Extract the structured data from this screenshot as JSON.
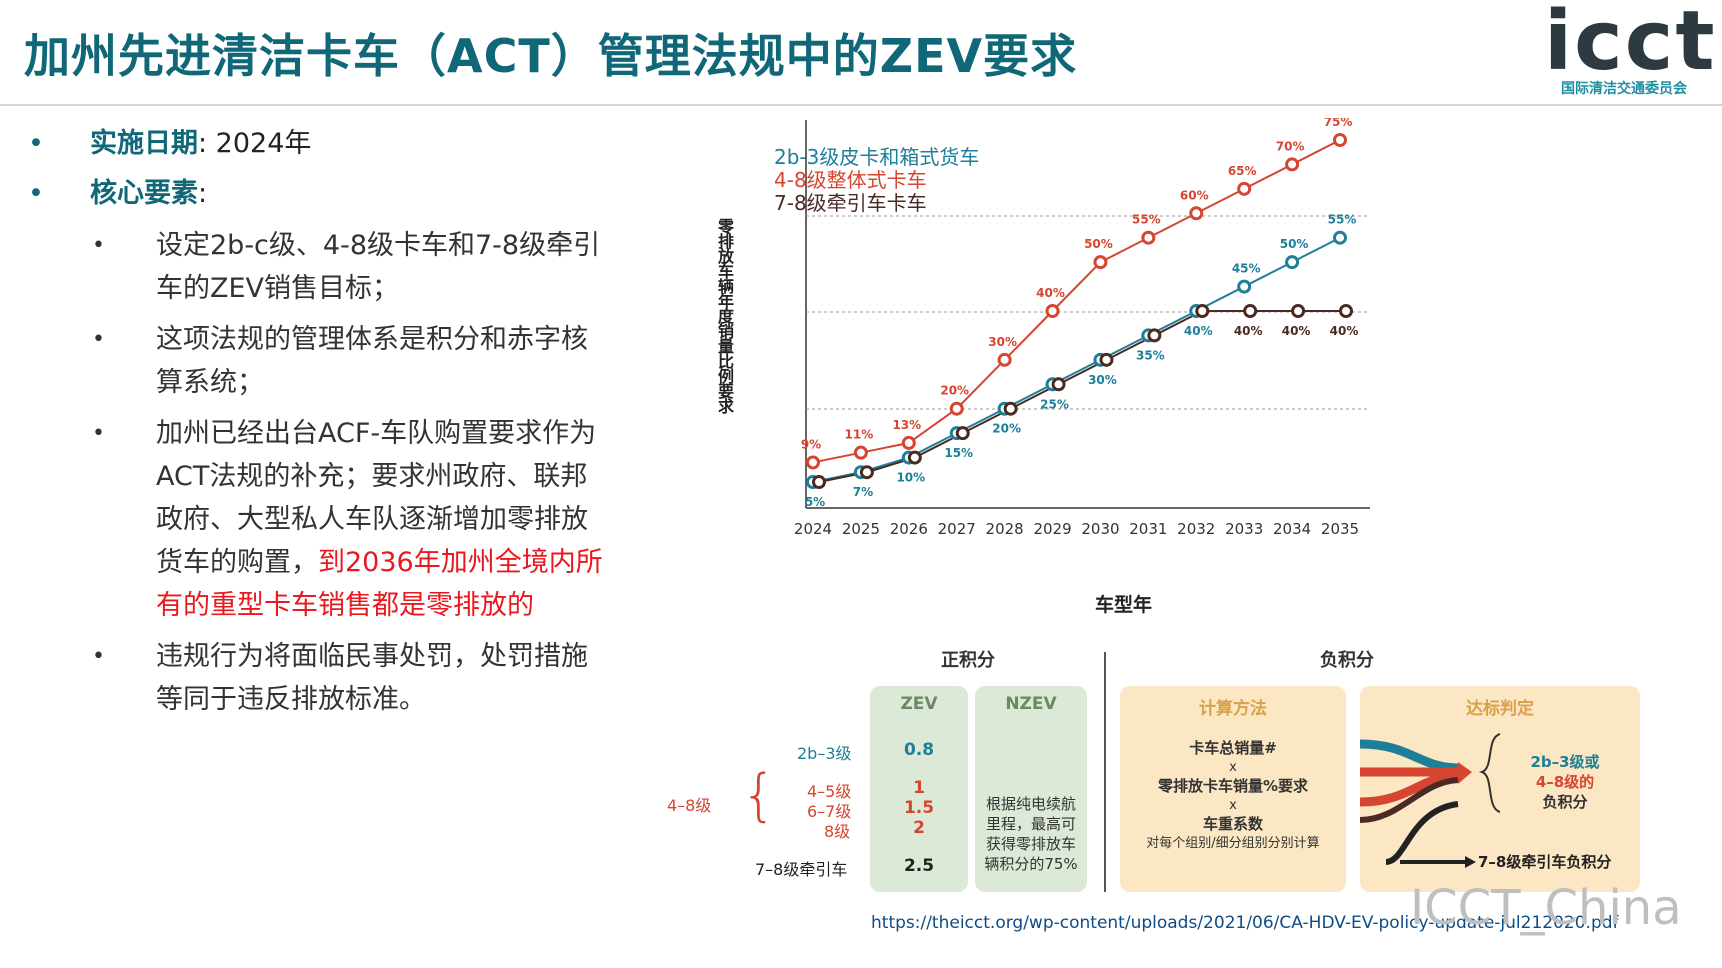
{
  "title": "加州先进清洁卡车（ACT）管理法规中的ZEV要求",
  "logo": {
    "word": "icct",
    "subtitle": "国际清洁交通委员会"
  },
  "bullets": {
    "b1_key": "实施日期",
    "b1_rest": ": 2024年",
    "b2_key": "核心要素",
    "b2_rest": ":",
    "sub1": "设定2b-c级、4-8级卡车和7-8级牵引车的ZEV销售目标；",
    "sub2": "这项法规的管理体系是积分和赤字核算系统；",
    "sub3_normal": "加州已经出台ACF-车队购置要求作为ACT法规的补充；要求州政府、联邦政府、大型私人车队逐渐增加零排放货车的购置，",
    "sub3_red": "到2036年加州全境内所有的重型卡车销售都是零排放的",
    "sub4": "违规行为将面临民事处罚，处罚措施等同于违反排放标准。",
    "dot": "•"
  },
  "chart_data": {
    "type": "line",
    "x": [
      2024,
      2025,
      2026,
      2027,
      2028,
      2029,
      2030,
      2031,
      2032,
      2033,
      2034,
      2035
    ],
    "xlabel": "车型年",
    "ylabel": "零排放车辆年度销量比例要求",
    "ylim": [
      0,
      80
    ],
    "grid": true,
    "legend_position": "top-left",
    "series": [
      {
        "name": "2b-3级皮卡和箱式货车",
        "color": "#1e7f98",
        "values": [
          5,
          7,
          10,
          15,
          20,
          25,
          30,
          35,
          40,
          45,
          50,
          55
        ],
        "labels": [
          "5%",
          "7%",
          "10%",
          "15%",
          "20%",
          "25%",
          "30%",
          "35%",
          "40%",
          "45%",
          "50%",
          "55%"
        ]
      },
      {
        "name": "4-8级整体式卡车",
        "color": "#d6452f",
        "values": [
          9,
          11,
          13,
          20,
          30,
          40,
          50,
          55,
          60,
          65,
          70,
          75
        ],
        "labels": [
          "9%",
          "11%",
          "13%",
          "20%",
          "30%",
          "40%",
          "50%",
          "55%",
          "60%",
          "65%",
          "70%",
          "75%"
        ]
      },
      {
        "name": "7-8级牵引车卡车",
        "color": "#4a2a22",
        "values": [
          5,
          7,
          10,
          15,
          20,
          25,
          30,
          35,
          40,
          40,
          40,
          40
        ],
        "labels": [
          "",
          "",
          "",
          "",
          "",
          "",
          "",
          "",
          "",
          "40%",
          "40%",
          "40%"
        ]
      }
    ],
    "extra_labels": {
      "2032": "40%"
    }
  },
  "credits": {
    "positive_header": "正积分",
    "negative_header": "负积分",
    "zev_title": "ZEV",
    "nzev_title": "NZEV",
    "rows": [
      {
        "label": "2b–3级",
        "zev": "0.8"
      },
      {
        "label": "4–5级",
        "zev": "1"
      },
      {
        "label": "6–7级",
        "zev": "1.5"
      },
      {
        "label": "8级",
        "zev": "2"
      },
      {
        "label": "7–8级牵引车",
        "zev": "2.5"
      }
    ],
    "group_label": "4–8级",
    "nzev_text": "根据纯电续航里程，最高可获得零排放车辆积分的75%",
    "calc_title": "计算方法",
    "calc_line1": "卡车总销量#",
    "calc_x": "x",
    "calc_line2": "零排放卡车销量%要求",
    "calc_line3": "车重系数",
    "calc_line4": "对每个组别/细分组别分别计算",
    "comp_title": "达标判定",
    "comp_out1": "2b–3级或",
    "comp_out2": "4–8级的",
    "comp_out3": "负积分",
    "comp_out4": "7–8级牵引车负积分"
  },
  "source_url": "https://theicct.org/wp-content/uploads/2021/06/CA-HDV-EV-policy-update-jul212020.pdf",
  "watermark": "ICCT_China"
}
